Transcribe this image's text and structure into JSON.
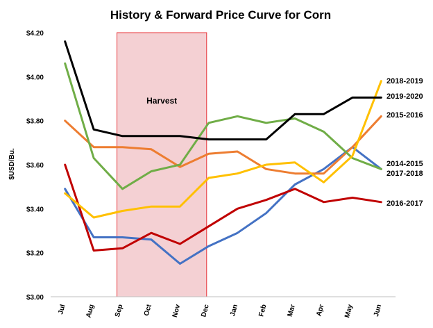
{
  "chart_data": {
    "type": "line",
    "title": "History & Forward Price Curve for Corn",
    "xlabel": "",
    "ylabel": "$USD/Bu.",
    "categories": [
      "Jul",
      "Aug",
      "Sep",
      "Oct",
      "Nov",
      "Dec",
      "Jan",
      "Feb",
      "Mar",
      "Apr",
      "May",
      "Jun"
    ],
    "ylim": [
      3.0,
      4.2
    ],
    "yticks": [
      "$3.00",
      "$3.20",
      "$3.40",
      "$3.60",
      "$3.80",
      "$4.00",
      "$4.20"
    ],
    "grid": "none",
    "legend": "labels at right end of each line",
    "annotation": {
      "label": "Harvest",
      "span": [
        "Sep",
        "Dec"
      ],
      "fill": "#f4d0d3",
      "stroke": "#e8343a"
    },
    "series": [
      {
        "name": "2014-2015",
        "color": "#4472c4",
        "values": [
          3.49,
          3.27,
          3.27,
          3.26,
          3.15,
          3.23,
          3.29,
          3.38,
          3.51,
          3.58,
          3.68,
          3.58
        ]
      },
      {
        "name": "2015-2016",
        "color": "#ed7d31",
        "values": [
          3.8,
          3.68,
          3.68,
          3.67,
          3.59,
          3.65,
          3.66,
          3.58,
          3.56,
          3.56,
          3.68,
          3.82
        ]
      },
      {
        "name": "2016-2017",
        "color": "#c00000",
        "values": [
          3.6,
          3.21,
          3.22,
          3.29,
          3.24,
          3.32,
          3.4,
          3.44,
          3.49,
          3.43,
          3.45,
          3.43
        ]
      },
      {
        "name": "2017-2018",
        "color": "#70ad47",
        "values": [
          4.06,
          3.63,
          3.49,
          3.57,
          3.6,
          3.79,
          3.82,
          3.79,
          3.81,
          3.75,
          3.63,
          3.58
        ]
      },
      {
        "name": "2018-2019",
        "color": "#ffc000",
        "values": [
          3.47,
          3.36,
          3.39,
          3.41,
          3.41,
          3.54,
          3.56,
          3.6,
          3.61,
          3.52,
          3.64,
          3.98
        ]
      },
      {
        "name": "2019-2020",
        "color": "#000000",
        "values": [
          4.16,
          3.76,
          3.73,
          3.73,
          3.73,
          3.715,
          3.715,
          3.715,
          3.83,
          3.83,
          3.905,
          3.905
        ]
      }
    ]
  }
}
